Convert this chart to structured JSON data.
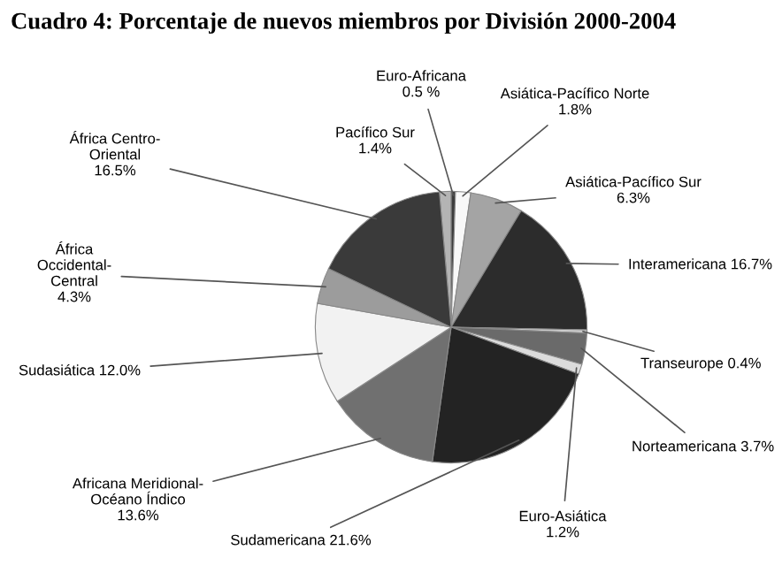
{
  "chart_data": {
    "type": "pie",
    "title": "Cuadro 4: Porcentaje de nuevos miembros por División 2000-2004",
    "categories": [
      "Pacífico Sur",
      "Euro-Africana",
      "Asiática-Pacífico Norte",
      "Asiática-Pacífico Sur",
      "Interamericana",
      "Transeurope",
      "Norteamericana",
      "Euro-Asiática",
      "Sudamericana",
      "Africana Meridional-\nOcéano Índico",
      "Sudasiática",
      "África\nOccidental-\nCentral",
      "África Centro-\nOriental"
    ],
    "values": [
      1.4,
      0.5,
      1.8,
      6.3,
      16.7,
      0.4,
      3.7,
      1.2,
      21.6,
      13.6,
      12.0,
      4.3,
      16.5
    ],
    "value_labels": [
      "1.4%",
      "0.5 %",
      "1.8%",
      "6.3%",
      "16.7%",
      "0.4%",
      "3.7%",
      "1.2%",
      "21.6%",
      "13.6%",
      "12.0%",
      "4.3%",
      "16.5%"
    ],
    "colors": [
      "#b4b4b4",
      "#3c3c3c",
      "#f8f8f8",
      "#a4a4a4",
      "#2c2c2c",
      "#cccccc",
      "#6a6a6a",
      "#dcdcdc",
      "#232323",
      "#707070",
      "#f2f2f2",
      "#9c9c9c",
      "#3a3a3a"
    ]
  }
}
